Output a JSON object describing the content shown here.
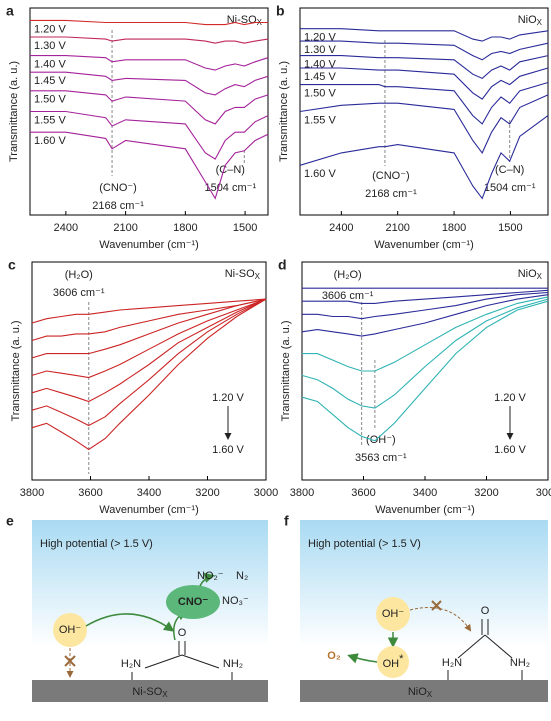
{
  "chart_data": [
    {
      "panel": "a",
      "type": "line",
      "label_main": "Ni-SO",
      "label_sub": "X",
      "ylabel": "Transmittance (a. u.)",
      "xlabel": "Wavenumber (cm⁻¹)",
      "xlim": [
        2580,
        1385
      ],
      "ylim": [
        0,
        100
      ],
      "xticks": [
        2400,
        2100,
        1800,
        1500
      ],
      "x": [
        2580,
        2400,
        2200,
        2168,
        2100,
        1800,
        1700,
        1650,
        1600,
        1550,
        1504,
        1450,
        1385
      ],
      "series": [
        {
          "name": "1.20 V",
          "color": "#d42a2a",
          "values": [
            94,
            94,
            93,
            93,
            93,
            93,
            92,
            92,
            92,
            93,
            92,
            93,
            93
          ]
        },
        {
          "name": "1.30 V",
          "color": "#c0265a",
          "values": [
            86,
            86,
            85,
            84,
            85,
            85,
            84,
            83,
            84,
            84,
            83,
            84,
            85
          ]
        },
        {
          "name": "1.40 V",
          "color": "#a5239a",
          "values": [
            77,
            77,
            76,
            74,
            75,
            75,
            71,
            70,
            72,
            73,
            72,
            74,
            76
          ]
        },
        {
          "name": "1.45 V",
          "color": "#a5239a",
          "values": [
            69,
            69,
            67,
            65,
            66,
            65,
            59,
            58,
            61,
            63,
            62,
            65,
            67
          ]
        },
        {
          "name": "1.50 V",
          "color": "#a5239a",
          "values": [
            60,
            60,
            58,
            55,
            57,
            55,
            46,
            44,
            50,
            52,
            52,
            56,
            58
          ]
        },
        {
          "name": "1.55 V",
          "color": "#a5239a",
          "values": [
            50,
            50,
            47,
            43,
            46,
            44,
            30,
            27,
            36,
            40,
            40,
            45,
            48
          ]
        },
        {
          "name": "1.60 V",
          "color": "#a5239a",
          "values": [
            40,
            40,
            37,
            32,
            36,
            32,
            16,
            8,
            24,
            30,
            31,
            36,
            39
          ]
        }
      ],
      "annotations": [
        {
          "text": "(CNO⁻)",
          "text2": "2168 cm⁻¹",
          "x": 2168
        },
        {
          "text": "(C–N)",
          "text2": "1504 cm⁻¹",
          "x": 1504
        }
      ]
    },
    {
      "panel": "b",
      "type": "line",
      "label_main": "NiO",
      "label_sub": "X",
      "ylabel": "Transmittance (a. u.)",
      "xlabel": "Wavenumber (cm⁻¹)",
      "xlim": [
        2620,
        1300
      ],
      "ylim": [
        0,
        100
      ],
      "xticks": [
        2400,
        2100,
        1800,
        1500
      ],
      "x": [
        2620,
        2400,
        2200,
        2168,
        2100,
        1800,
        1700,
        1650,
        1600,
        1550,
        1504,
        1450,
        1300
      ],
      "series": [
        {
          "name": "1.20 V",
          "color": "#2b2b9a",
          "values": [
            90,
            90,
            89,
            89,
            89,
            89,
            85,
            84,
            86,
            86,
            85,
            87,
            89
          ]
        },
        {
          "name": "1.30 V",
          "color": "#2b2b9a",
          "values": [
            84,
            84,
            83,
            83,
            83,
            82,
            77,
            75,
            78,
            79,
            78,
            80,
            83
          ]
        },
        {
          "name": "1.40 V",
          "color": "#2b2b9a",
          "values": [
            77,
            77,
            76,
            76,
            76,
            75,
            68,
            66,
            70,
            72,
            70,
            74,
            77
          ]
        },
        {
          "name": "1.45 V",
          "color": "#2b2b9a",
          "values": [
            71,
            71,
            70,
            70,
            70,
            68,
            59,
            56,
            62,
            65,
            63,
            67,
            71
          ]
        },
        {
          "name": "1.50 V",
          "color": "#2b2b9a",
          "values": [
            63,
            63,
            63,
            62,
            62,
            60,
            48,
            44,
            52,
            57,
            54,
            60,
            64
          ]
        },
        {
          "name": "1.55 V",
          "color": "#2b2b9a",
          "values": [
            50,
            53,
            54,
            54,
            54,
            51,
            36,
            30,
            40,
            47,
            44,
            52,
            58
          ]
        },
        {
          "name": "1.60 V",
          "color": "#2b2b9a",
          "values": [
            24,
            30,
            33,
            33,
            34,
            30,
            14,
            8,
            20,
            30,
            26,
            38,
            48
          ]
        }
      ],
      "annotations": [
        {
          "text": "(CNO⁻)",
          "text2": "2168 cm⁻¹",
          "x": 2168
        },
        {
          "text": "(C–N)",
          "text2": "1504 cm⁻¹",
          "x": 1504
        }
      ]
    },
    {
      "panel": "c",
      "type": "line",
      "label_main": "Ni-SO",
      "label_sub": "X",
      "ylabel": "Transmittance (a. u.)",
      "xlabel": "Wavenumber (cm⁻¹)",
      "xlim": [
        3800,
        3000
      ],
      "ylim": [
        0,
        100
      ],
      "xticks": [
        3800,
        3600,
        3400,
        3200,
        3000
      ],
      "voltage_start": "1.20 V",
      "voltage_end": "1.60 V",
      "x": [
        3800,
        3750,
        3700,
        3650,
        3606,
        3550,
        3500,
        3400,
        3300,
        3200,
        3100,
        3000
      ],
      "series": [
        {
          "color": "#cc2424",
          "values": [
            72,
            74,
            75,
            76,
            76,
            77,
            78,
            79,
            80,
            81,
            82,
            83
          ]
        },
        {
          "color": "#cc2424",
          "values": [
            64,
            66,
            66,
            67,
            67,
            68,
            70,
            73,
            76,
            78,
            80,
            83
          ]
        },
        {
          "color": "#cc2424",
          "values": [
            56,
            58,
            58,
            58,
            58,
            60,
            62,
            67,
            72,
            76,
            80,
            83
          ]
        },
        {
          "color": "#cc2424",
          "values": [
            48,
            50,
            49,
            48,
            47,
            50,
            53,
            60,
            67,
            73,
            78,
            83
          ]
        },
        {
          "color": "#cc2424",
          "values": [
            40,
            42,
            40,
            38,
            36,
            40,
            44,
            53,
            63,
            70,
            77,
            83
          ]
        },
        {
          "color": "#cc2424",
          "values": [
            32,
            34,
            31,
            28,
            25,
            29,
            35,
            46,
            58,
            68,
            76,
            83
          ]
        },
        {
          "color": "#cc2424",
          "values": [
            24,
            26,
            22,
            18,
            14,
            19,
            26,
            39,
            53,
            65,
            75,
            83
          ]
        }
      ],
      "annotations": [
        {
          "text": "(H₂O)",
          "text2": "3606 cm⁻¹",
          "x": 3606
        }
      ]
    },
    {
      "panel": "d",
      "type": "line",
      "label_main": "NiO",
      "label_sub": "X",
      "ylabel": "Transmittance (a. u.)",
      "xlabel": "Wavenumber (cm⁻¹)",
      "xlim": [
        3800,
        3000
      ],
      "ylim": [
        0,
        100
      ],
      "xticks": [
        3800,
        3600,
        3400,
        3200,
        3000
      ],
      "voltage_start": "1.20 V",
      "voltage_end": "1.60 V",
      "x": [
        3800,
        3750,
        3700,
        3650,
        3606,
        3563,
        3500,
        3400,
        3300,
        3200,
        3100,
        3000
      ],
      "series": [
        {
          "color": "#2b2b9a",
          "values": [
            88,
            88,
            88,
            88,
            88,
            88,
            88,
            88,
            88,
            88,
            88,
            88
          ]
        },
        {
          "color": "#2b2b9a",
          "values": [
            82,
            82,
            82,
            82,
            81,
            81,
            82,
            83,
            84,
            85,
            86,
            87
          ]
        },
        {
          "color": "#2b2b9a",
          "values": [
            76,
            76,
            75,
            75,
            74,
            75,
            76,
            78,
            80,
            83,
            85,
            86
          ]
        },
        {
          "color": "#2b2b9a",
          "values": [
            68,
            69,
            68,
            67,
            66,
            67,
            69,
            72,
            76,
            80,
            83,
            85
          ]
        },
        {
          "color": "#2fb3b3",
          "values": [
            58,
            58,
            55,
            52,
            50,
            50,
            54,
            62,
            70,
            76,
            81,
            84
          ]
        },
        {
          "color": "#2fb3b3",
          "values": [
            48,
            46,
            42,
            37,
            34,
            33,
            39,
            52,
            64,
            73,
            79,
            83
          ]
        },
        {
          "color": "#2fb3b3",
          "values": [
            38,
            36,
            30,
            24,
            20,
            18,
            26,
            42,
            58,
            70,
            78,
            82
          ]
        }
      ],
      "annotations": [
        {
          "text": "(H₂O)",
          "text2": "3606 cm⁻¹",
          "x": 3606
        },
        {
          "text": "(OH⁻)",
          "text2": "3563 cm⁻¹",
          "x": 3563
        }
      ]
    }
  ],
  "diagrams": {
    "e": {
      "panel": "e",
      "title": "High potential (> 1.5 V)",
      "substrate_main": "Ni-SO",
      "substrate_sub": "X",
      "oh": "OH⁻",
      "cno": "CNO⁻",
      "product_1": "NO₂⁻",
      "product_2": "N₂",
      "product_3": "NO₃⁻",
      "urea_o": "O",
      "urea_left": "H₂N",
      "urea_right": "NH₂"
    },
    "f": {
      "panel": "f",
      "title": "High potential (> 1.5 V)",
      "substrate_main": "NiO",
      "substrate_sub": "X",
      "oh": "OH⁻",
      "oh_ads": "OH",
      "oh_ads_mark": "*",
      "o2": "O₂",
      "urea_o": "O",
      "urea_left": "H₂N",
      "urea_right": "NH₂"
    }
  }
}
